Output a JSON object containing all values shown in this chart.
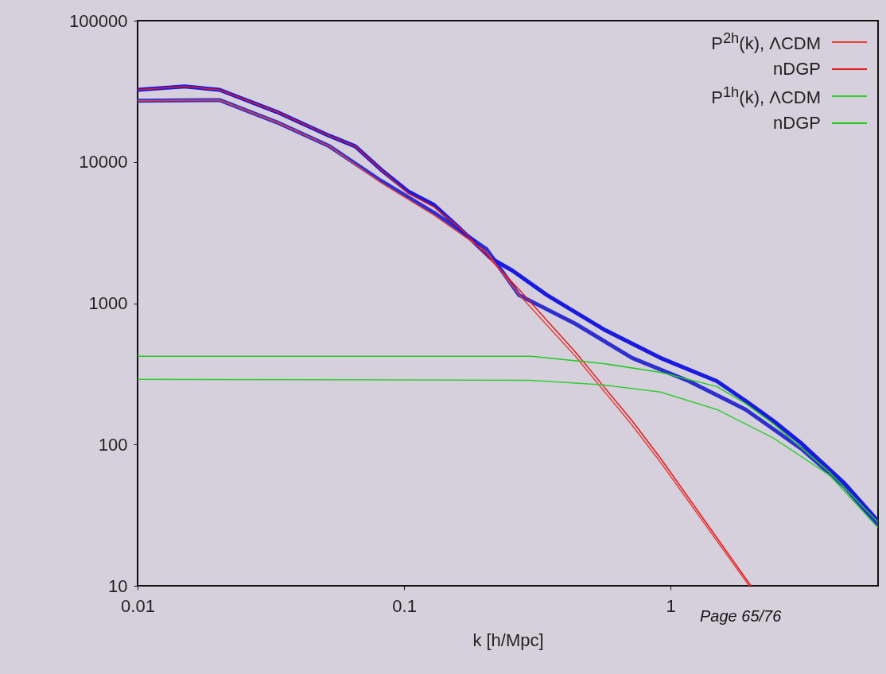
{
  "chart_data": {
    "type": "line",
    "xlabel": "k [h/Mpc]",
    "log": "xy",
    "xlim": [
      0.01,
      6
    ],
    "ylim": [
      10,
      100000
    ],
    "xticks": [
      0.01,
      0.1,
      1
    ],
    "yticks": [
      10,
      100,
      1000,
      10000,
      100000
    ],
    "grid": false,
    "legend": "top right",
    "line_style": "solid",
    "annotations": [
      "Page 65/76"
    ],
    "series": [
      {
        "color": "#3030d0",
        "x": [
          0.01,
          0.0203,
          0.0333,
          0.0525,
          0.0821,
          0.1294,
          0.204,
          0.27,
          0.44,
          0.717,
          1.17,
          1.91,
          3.11,
          4.49,
          5.97
        ],
        "values": [
          27100,
          27400,
          19100,
          12900,
          7330,
          4370,
          2410,
          1140,
          714,
          410,
          281,
          177,
          92.5,
          50.4,
          27.1
        ]
      },
      {
        "color": "#1a1ae0",
        "x": [
          0.01,
          0.015,
          0.0203,
          0.0333,
          0.0525,
          0.0656,
          0.0821,
          0.1034,
          0.1294,
          0.162,
          0.211,
          0.255,
          0.344,
          0.561,
          0.916,
          1.49,
          1.91,
          2.43,
          3.11,
          4.49,
          5.97
        ],
        "values": [
          32400,
          34200,
          32400,
          22600,
          15300,
          12900,
          8790,
          6200,
          4970,
          3370,
          2090,
          1700,
          1140,
          653,
          410,
          281,
          204,
          147,
          101,
          53.1,
          28.9
        ]
      },
      {
        "name": "P$^{2h}$(k), ΛCDM",
        "color": "#e8403a",
        "x": [
          0.01,
          0.0203,
          0.0333,
          0.0525,
          0.0821,
          0.1294,
          0.204,
          0.27,
          0.44,
          0.561,
          0.717,
          0.916,
          1.97
        ],
        "values": [
          27100,
          27400,
          19100,
          12900,
          7100,
          4200,
          2300,
          1150,
          420,
          240,
          137,
          75,
          10
        ]
      },
      {
        "name": "nDGP",
        "color": "#e31a1c",
        "x": [
          0.01,
          0.015,
          0.0203,
          0.0333,
          0.0525,
          0.0656,
          0.0821,
          0.1034,
          0.1294,
          0.165,
          0.27,
          0.44,
          0.561,
          0.717,
          0.916,
          2.0
        ],
        "values": [
          32400,
          34200,
          32400,
          22600,
          15300,
          12900,
          8790,
          6000,
          4800,
          3300,
          1250,
          449,
          257,
          147,
          80,
          10
        ]
      },
      {
        "name": "P$^{1h}$(k), ΛCDM",
        "color": "#33cc33",
        "x": [
          0.01,
          0.3,
          0.561,
          0.916,
          1.49,
          2.43,
          3.97,
          5.97
        ],
        "values": [
          289,
          285,
          264,
          235,
          177,
          111,
          60,
          26
        ]
      },
      {
        "name": "nDGP",
        "color": "#22cc22",
        "x": [
          0.01,
          0.1,
          0.3,
          0.561,
          0.916,
          1.49,
          1.91,
          2.43,
          3.97,
          5.97
        ],
        "values": [
          421,
          421,
          421,
          374,
          324,
          257,
          195,
          140,
          63,
          28.5
        ]
      }
    ]
  }
}
